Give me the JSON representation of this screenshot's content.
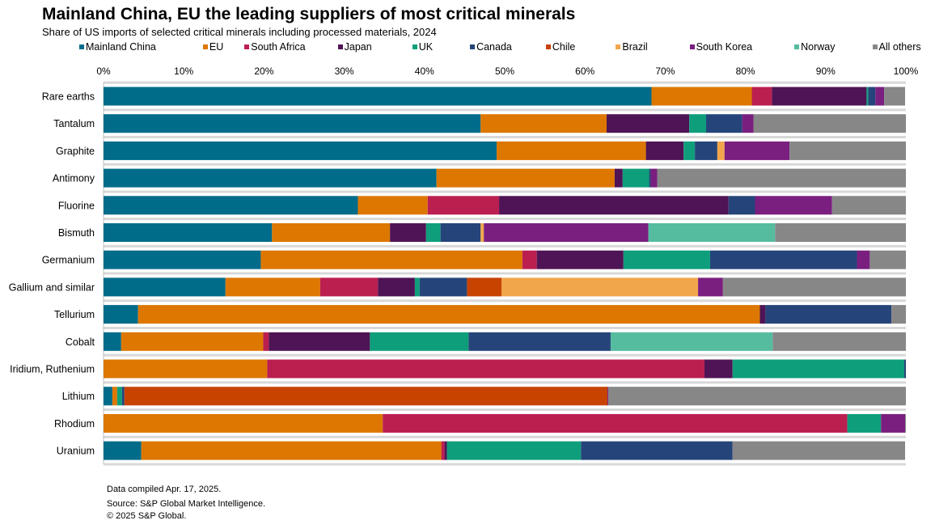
{
  "chart_data": {
    "type": "bar",
    "orientation": "horizontal",
    "stacked": true,
    "title": "Mainland China, EU the leading suppliers of most critical minerals",
    "subtitle": "Share of US imports of selected critical minerals including processed materials, 2024",
    "xlim": [
      0,
      100
    ],
    "xticks": [
      "0%",
      "10%",
      "20%",
      "30%",
      "40%",
      "50%",
      "60%",
      "70%",
      "80%",
      "90%",
      "100%"
    ],
    "legend_placement": "top",
    "categories": [
      "Rare earths",
      "Tantalum",
      "Graphite",
      "Antimony",
      "Fluorine",
      "Bismuth",
      "Germanium",
      "Gallium and similar",
      "Tellurium",
      "Cobalt",
      "Iridium, Ruthenium",
      "Lithium",
      "Rhodium",
      "Uranium"
    ],
    "series": [
      {
        "name": "Mainland China",
        "color": "#006c8a",
        "values": [
          68.3,
          47.0,
          49.0,
          41.5,
          31.7,
          21.0,
          19.6,
          15.2,
          4.3,
          2.2,
          0,
          1.1,
          0,
          4.7
        ]
      },
      {
        "name": "EU",
        "color": "#dd7700",
        "values": [
          12.5,
          15.7,
          18.6,
          22.2,
          8.7,
          14.7,
          32.6,
          11.8,
          77.5,
          17.7,
          20.4,
          0.6,
          34.8,
          37.4
        ]
      },
      {
        "name": "South Africa",
        "color": "#bb1f50",
        "values": [
          2.5,
          0,
          0,
          0,
          8.9,
          0,
          1.8,
          7.2,
          0,
          0.7,
          54.5,
          0,
          57.9,
          0.4
        ]
      },
      {
        "name": "Japan",
        "color": "#4f1455",
        "values": [
          11.8,
          10.3,
          4.7,
          1.0,
          28.6,
          4.5,
          10.8,
          4.6,
          0.7,
          12.6,
          3.5,
          0,
          0,
          0.3
        ]
      },
      {
        "name": "UK",
        "color": "#0f9e7b",
        "values": [
          0.2,
          2.1,
          1.4,
          3.3,
          0,
          1.8,
          10.8,
          0.6,
          0,
          12.3,
          21.4,
          0.6,
          4.2,
          16.7
        ]
      },
      {
        "name": "Canada",
        "color": "#25457a",
        "values": [
          0.9,
          4.5,
          2.8,
          0.2,
          3.3,
          5.0,
          18.3,
          5.9,
          15.7,
          17.7,
          0.2,
          0.3,
          0,
          18.9
        ]
      },
      {
        "name": "Chile",
        "color": "#c84200",
        "values": [
          0,
          0,
          0,
          0,
          0,
          0,
          0,
          4.3,
          0,
          0,
          0,
          60.2,
          0,
          0
        ]
      },
      {
        "name": "Brazil",
        "color": "#f2a64b",
        "values": [
          0,
          0,
          0.9,
          0,
          0,
          0.4,
          0,
          24.5,
          0,
          0,
          0,
          0,
          0,
          0
        ]
      },
      {
        "name": "South Korea",
        "color": "#7a1f80",
        "values": [
          1.1,
          1.4,
          8.1,
          0.8,
          9.6,
          20.5,
          1.6,
          3.1,
          0,
          0,
          0,
          0.1,
          3.0,
          0
        ]
      },
      {
        "name": "Norway",
        "color": "#55bca0",
        "values": [
          0,
          0,
          0,
          0,
          0,
          15.8,
          0,
          0,
          0,
          20.2,
          0,
          0,
          0,
          0
        ]
      },
      {
        "name": "All others",
        "color": "#878787",
        "values": [
          2.6,
          19.0,
          14.5,
          31.0,
          9.2,
          16.3,
          4.5,
          22.8,
          1.8,
          16.6,
          0,
          37.1,
          0.1,
          21.5
        ]
      }
    ]
  },
  "footer": {
    "compiled": "Data compiled Apr. 17, 2025.",
    "source": "Source: S&P Global Market Intelligence.",
    "copyright": "© 2025 S&P Global."
  }
}
